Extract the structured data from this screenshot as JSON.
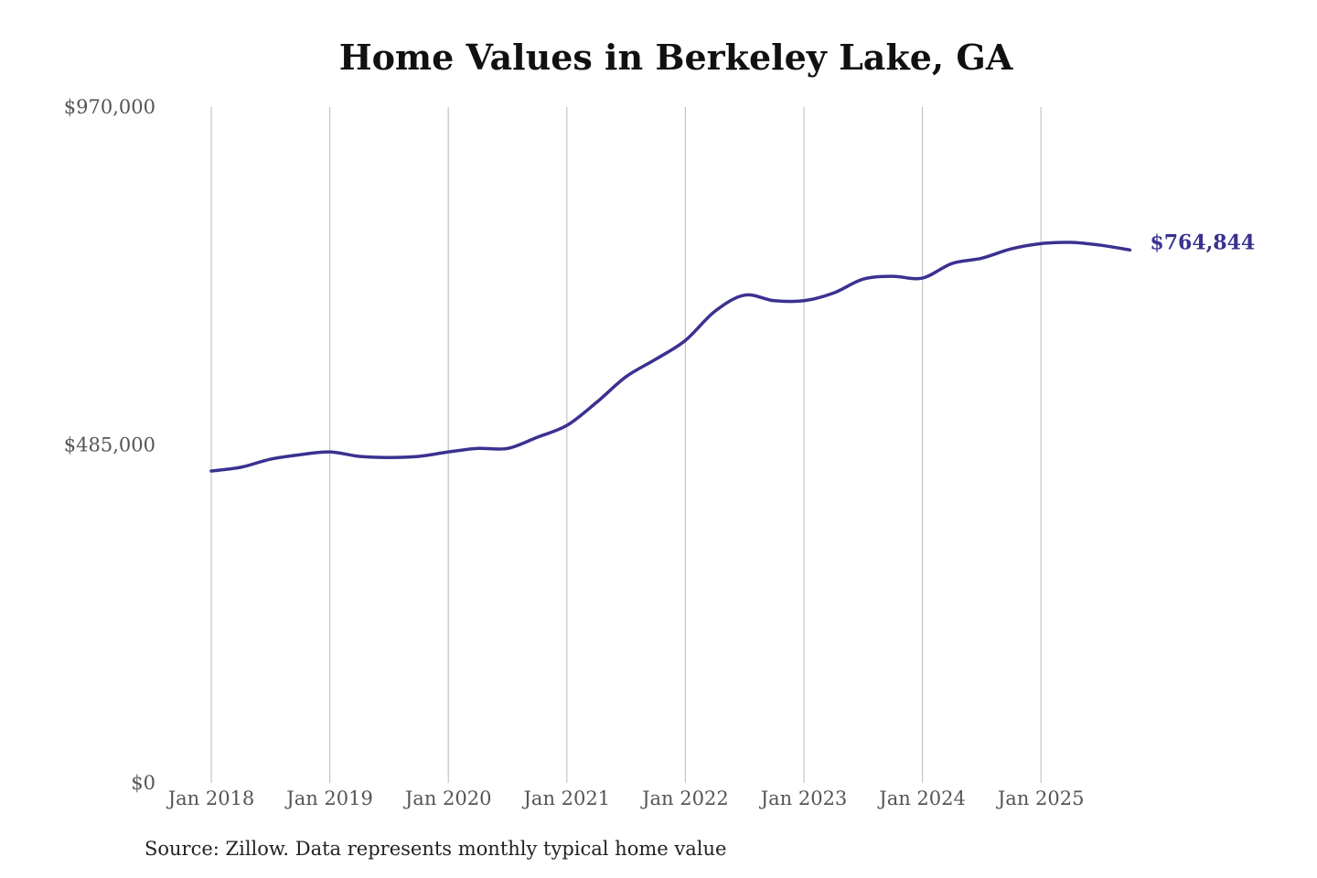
{
  "chart_data": {
    "type": "line",
    "title": "Home Values in Berkeley Lake, GA",
    "source": "Source: Zillow. Data represents monthly typical home value",
    "xlabel": "",
    "ylabel": "",
    "ylim": [
      0,
      970000
    ],
    "y_ticks": [
      {
        "value": 0,
        "label": "$0"
      },
      {
        "value": 485000,
        "label": "$485,000"
      },
      {
        "value": 970000,
        "label": "$970,000"
      }
    ],
    "x_ticks": [
      {
        "value": "2018-01",
        "label": "Jan 2018"
      },
      {
        "value": "2019-01",
        "label": "Jan 2019"
      },
      {
        "value": "2020-01",
        "label": "Jan 2020"
      },
      {
        "value": "2021-01",
        "label": "Jan 2021"
      },
      {
        "value": "2022-01",
        "label": "Jan 2022"
      },
      {
        "value": "2023-01",
        "label": "Jan 2023"
      },
      {
        "value": "2024-01",
        "label": "Jan 2024"
      },
      {
        "value": "2025-01",
        "label": "Jan 2025"
      }
    ],
    "grid": "vertical",
    "line_color": "#3a3190",
    "end_label": "$764,844",
    "series": [
      {
        "x": [
          "2018-01",
          "2018-04",
          "2018-07",
          "2018-10",
          "2019-01",
          "2019-04",
          "2019-07",
          "2019-10",
          "2020-01",
          "2020-04",
          "2020-07",
          "2020-10",
          "2021-01",
          "2021-04",
          "2021-07",
          "2021-10",
          "2022-01",
          "2022-04",
          "2022-07",
          "2022-10",
          "2023-01",
          "2023-04",
          "2023-07",
          "2023-10",
          "2024-01",
          "2024-04",
          "2024-07",
          "2024-10",
          "2025-01",
          "2025-04",
          "2025-07",
          "2025-10"
        ],
        "values": [
          447600,
          453000,
          464600,
          471000,
          475000,
          468600,
          467000,
          468600,
          475000,
          480000,
          480000,
          496000,
          513000,
          546000,
          583000,
          608000,
          635000,
          677000,
          700000,
          692000,
          692000,
          703000,
          723000,
          727000,
          724500,
          745500,
          753000,
          766500,
          774000,
          775700,
          771700,
          764844
        ]
      }
    ]
  }
}
